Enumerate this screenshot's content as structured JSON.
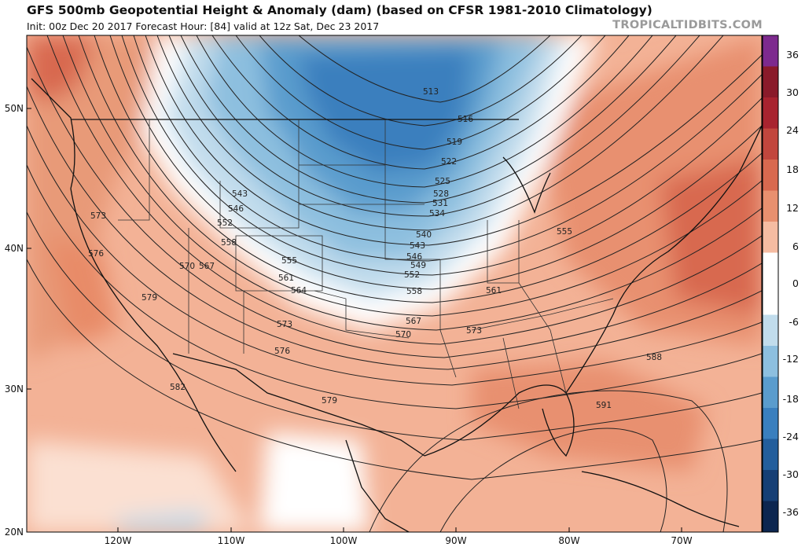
{
  "header": {
    "title": "GFS 500mb Geopotential Height & Anomaly (dam) (based on CFSR 1981-2010 Climatology)",
    "subtitle": "Init: 00z Dec 20 2017   Forecast Hour: [84]   valid at 12z Sat, Dec 23 2017",
    "brand": "TROPICALTIDBITS.COM"
  },
  "map": {
    "lat_labels": [
      "50N",
      "40N",
      "30N",
      "20N"
    ],
    "lon_labels": [
      "120W",
      "110W",
      "100W",
      "90W",
      "80W",
      "70W"
    ],
    "contour_labels": [
      "513",
      "516",
      "519",
      "522",
      "525",
      "528",
      "531",
      "534",
      "540",
      "543",
      "546",
      "549",
      "552",
      "558",
      "561",
      "567",
      "570",
      "573",
      "576",
      "579",
      "582",
      "588",
      "591",
      "543",
      "546",
      "552",
      "558",
      "555",
      "561",
      "564",
      "573",
      "576",
      "573",
      "579",
      "570",
      "567",
      "555"
    ]
  },
  "colorbar": {
    "tick_labels": [
      "36",
      "30",
      "24",
      "18",
      "12",
      "6",
      "0",
      "-6",
      "-12",
      "-18",
      "-24",
      "-30",
      "-36"
    ],
    "colors": [
      "#7d2a8e",
      "#8a1a2a",
      "#a8232f",
      "#c2463d",
      "#d8694f",
      "#e8906f",
      "#f5bca2",
      "#ffffff",
      "#ffffff",
      "#c1dcec",
      "#8dbfdf",
      "#5a9ccd",
      "#3a7fbe",
      "#235e9c",
      "#163f75",
      "#0d2650"
    ]
  }
}
